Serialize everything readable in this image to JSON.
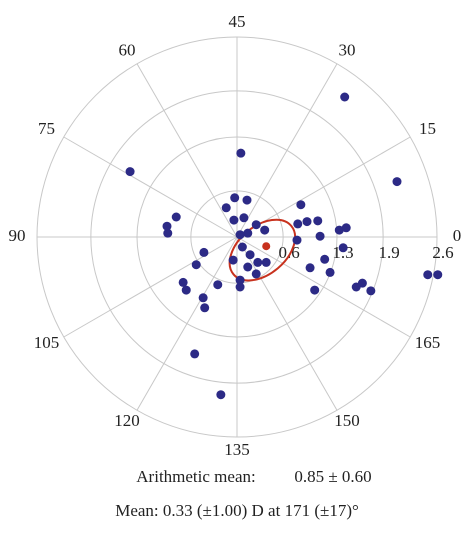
{
  "chart_data": {
    "type": "polar-scatter",
    "rlim": [
      0,
      2.6
    ],
    "rticks": [
      0.6,
      1.3,
      1.9,
      2.6
    ],
    "angle_ticks": [
      0,
      15,
      30,
      45,
      60,
      75,
      90,
      105,
      120,
      135,
      150,
      165
    ],
    "grid": true,
    "series": [
      {
        "color": "#2c2a86",
        "x": [
          1.4,
          2.08,
          -1.39,
          0.05,
          -0.79,
          -0.9,
          -0.91,
          -0.43,
          -0.03,
          0.13,
          -0.14,
          -0.04,
          0.09,
          0.25,
          0.36,
          0.14,
          0.07,
          0.17,
          0.27,
          0.38,
          0.14,
          0.25,
          0.04,
          0.04,
          0.79,
          0.91,
          1.05,
          0.83,
          0.78,
          1.08,
          1.33,
          1.42,
          1.38,
          0.95,
          1.14,
          1.21,
          1.01,
          1.63,
          1.74,
          1.55,
          2.48,
          2.61,
          -0.53,
          -0.7,
          -0.66,
          -0.44,
          -0.25,
          -0.42,
          -0.55,
          -0.21,
          0.04,
          -0.05
        ],
        "y": [
          1.82,
          0.72,
          0.85,
          1.09,
          0.26,
          0.05,
          0.14,
          -0.2,
          0.51,
          0.48,
          0.38,
          0.22,
          0.25,
          0.16,
          0.09,
          0.05,
          -0.13,
          -0.23,
          -0.33,
          -0.33,
          -0.39,
          -0.48,
          -0.56,
          -0.65,
          0.17,
          0.2,
          0.21,
          0.42,
          -0.04,
          0.01,
          0.09,
          0.12,
          -0.14,
          -0.4,
          -0.29,
          -0.46,
          -0.69,
          -0.6,
          -0.7,
          -0.65,
          -0.49,
          -0.49,
          -0.36,
          -0.59,
          -0.69,
          -0.79,
          -0.62,
          -0.92,
          -1.52,
          -2.05,
          0.03,
          -0.3
        ]
      },
      {
        "color": "#c8321e",
        "x": [
          0.38
        ],
        "y": [
          -0.12
        ]
      }
    ],
    "ellipse": {
      "color": "#c8321e",
      "cx": 0.33,
      "cy": -0.17,
      "rx": 0.49,
      "ry": 0.31,
      "angle": 40
    },
    "annotations": [
      "Arithmetic mean:",
      "0.85 ± 0.60",
      "Mean: 0.33 (±1.00) D at 171 (±17)°"
    ]
  }
}
